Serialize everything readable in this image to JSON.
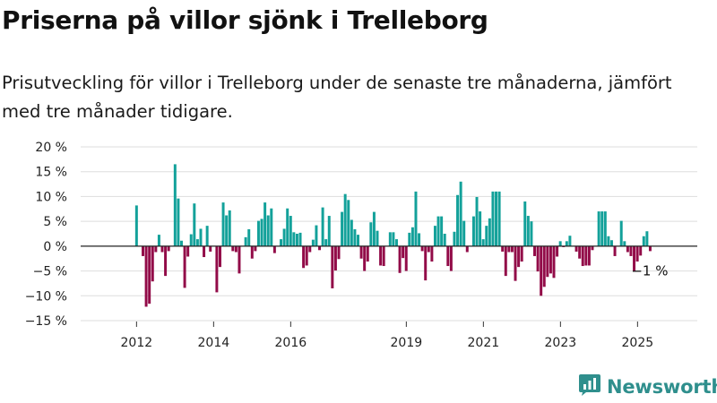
{
  "title": "Priserna på villor sjönk i Trelleborg",
  "subtitle": "Prisutveckling för villor i Trelleborg under de senaste tre månaderna, jämfört med tre månader tidigare.",
  "brand": {
    "name": "Newsworthy",
    "icon": "newsworthy-logo-icon"
  },
  "colors": {
    "positive": "#13a19a",
    "negative": "#920b48",
    "grid": "#dddddd",
    "zero": "#222222"
  },
  "chart_data": {
    "type": "bar",
    "title": "",
    "xlabel": "",
    "ylabel": "",
    "unit": "%",
    "ylim": [
      -15,
      20
    ],
    "yticks": [
      20,
      15,
      10,
      5,
      0,
      -5,
      -10,
      -15
    ],
    "ytick_labels": [
      "20 %",
      "15 %",
      "10 %",
      "5 %",
      "0 %",
      "−5 %",
      "−10 %",
      "−15 %"
    ],
    "xticks": [
      {
        "label": "2012",
        "x": 2012.0
      },
      {
        "label": "2014",
        "x": 2014.0
      },
      {
        "label": "2016",
        "x": 2016.0
      },
      {
        "label": "2019",
        "x": 2019.0
      },
      {
        "label": "2021",
        "x": 2021.0
      },
      {
        "label": "2023",
        "x": 2023.0
      },
      {
        "label": "2025",
        "x": 2025.0
      }
    ],
    "grid": true,
    "x_start": 2012.0,
    "x_step": 0.0833,
    "values": [
      8.2,
      0,
      -2,
      -12.2,
      -11.6,
      -7.1,
      -1.2,
      2.3,
      -1.2,
      -6,
      -1,
      0,
      16.5,
      9.6,
      1.1,
      -8.4,
      -2.1,
      2.4,
      8.6,
      1.4,
      3.5,
      -2.2,
      4.1,
      -1.1,
      0,
      -9.3,
      -4.2,
      8.8,
      6.2,
      7.2,
      -1,
      -1.2,
      -5.5,
      0,
      1.8,
      3.4,
      -2.5,
      -1,
      5.1,
      5.5,
      8.8,
      6.2,
      7.6,
      -1.4,
      0,
      1.4,
      3.5,
      7.6,
      6.1,
      2.8,
      2.5,
      2.7,
      -4.4,
      -3.9,
      -1.2,
      1.3,
      4.2,
      -0.8,
      7.8,
      1.4,
      6.1,
      -8.5,
      -4.9,
      -2.6,
      6.9,
      10.5,
      9.3,
      5.3,
      3.4,
      2.3,
      -2.5,
      -5,
      -3.1,
      4.8,
      6.9,
      3.1,
      -3.9,
      -4,
      0,
      2.8,
      2.8,
      1.4,
      -5.4,
      -2.4,
      -5,
      2.7,
      3.8,
      11,
      2.6,
      -1,
      -6.9,
      -1.2,
      -3.1,
      4.1,
      6,
      6,
      2.5,
      -4,
      -5,
      2.9,
      10.3,
      13,
      5.1,
      -1.2,
      0,
      6,
      9.9,
      7,
      1.4,
      4.1,
      5.6,
      11,
      11,
      11,
      -1.1,
      -6,
      -1.2,
      -1.2,
      -7,
      -4.2,
      -3.1,
      9,
      6.1,
      5,
      -2,
      -5.1,
      -10,
      -8.2,
      -6.2,
      -5.5,
      -6.4,
      -2.1,
      1,
      -0.2,
      1,
      2.1,
      0,
      -1.1,
      -2.5,
      -4,
      -3.9,
      -3.9,
      -0.8,
      0,
      7,
      7,
      7,
      2,
      1.2,
      -2,
      0,
      5.1,
      1,
      -1.2,
      -2,
      -5,
      -3.1,
      -1.9,
      2,
      3,
      -1
    ],
    "annotations": [
      {
        "text": "−1 %"
      }
    ]
  }
}
